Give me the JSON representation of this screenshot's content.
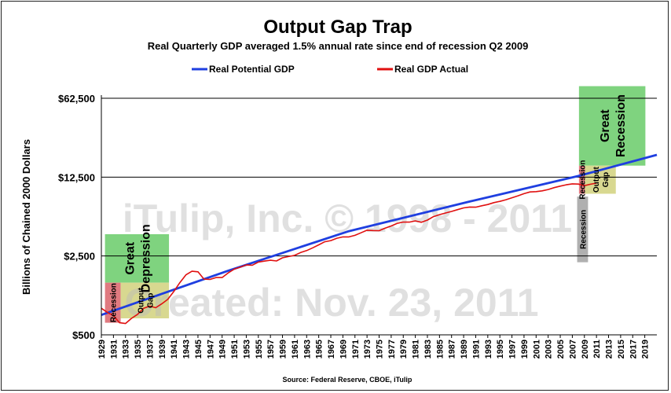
{
  "chart_data": {
    "type": "line",
    "title": "Output Gap Trap",
    "subtitle": "Real Quarterly GDP averaged 1.5% annual rate since end of recession Q2 2009",
    "ylabel": "Billions of Chained 2000 Dollars",
    "source": "Source: Federal Reserve, CBOE, iTulip",
    "y_scale": "log",
    "ylim": [
      500,
      62500
    ],
    "y_ticks": [
      500,
      2500,
      12500,
      62500
    ],
    "y_tick_labels": [
      "$500",
      "$2,500",
      "$12,500",
      "$62,500"
    ],
    "xlim": [
      1929,
      2021
    ],
    "x_ticks": [
      1929,
      1931,
      1933,
      1935,
      1937,
      1939,
      1941,
      1943,
      1945,
      1947,
      1949,
      1951,
      1953,
      1955,
      1957,
      1959,
      1961,
      1963,
      1965,
      1967,
      1969,
      1971,
      1973,
      1975,
      1977,
      1979,
      1981,
      1983,
      1985,
      1987,
      1989,
      1991,
      1993,
      1995,
      1997,
      1999,
      2001,
      2003,
      2005,
      2007,
      2009,
      2011,
      2013,
      2015,
      2017,
      2019
    ],
    "grid": true,
    "legend_placement": "top",
    "series": [
      {
        "name": "Real Potential GDP",
        "color": "#1f3fe0",
        "x": [
          1929,
          1950,
          1970,
          1990,
          2008,
          2021
        ],
        "values": [
          750,
          1850,
          4150,
          7600,
          12800,
          19700
        ]
      },
      {
        "name": "Real GDP Actual",
        "color": "#e01010",
        "x": [
          1929,
          1930,
          1931,
          1932,
          1933,
          1934,
          1935,
          1936,
          1937,
          1938,
          1939,
          1940,
          1941,
          1942,
          1943,
          1944,
          1945,
          1946,
          1947,
          1948,
          1949,
          1950,
          1951,
          1952,
          1953,
          1954,
          1955,
          1956,
          1957,
          1958,
          1959,
          1960,
          1961,
          1962,
          1963,
          1964,
          1965,
          1966,
          1967,
          1968,
          1969,
          1970,
          1971,
          1972,
          1973,
          1974,
          1975,
          1976,
          1977,
          1978,
          1979,
          1980,
          1981,
          1982,
          1983,
          1984,
          1985,
          1986,
          1987,
          1988,
          1989,
          1990,
          1991,
          1992,
          1993,
          1994,
          1995,
          1996,
          1997,
          1998,
          1999,
          2000,
          2001,
          2002,
          2003,
          2004,
          2005,
          2006,
          2007,
          2008,
          2009,
          2010,
          2011
        ],
        "values": [
          860,
          790,
          740,
          640,
          630,
          700,
          760,
          860,
          900,
          870,
          940,
          1030,
          1210,
          1450,
          1700,
          1830,
          1810,
          1560,
          1550,
          1610,
          1610,
          1770,
          1910,
          1990,
          2080,
          2070,
          2210,
          2250,
          2290,
          2260,
          2410,
          2470,
          2530,
          2680,
          2790,
          2950,
          3140,
          3340,
          3420,
          3590,
          3690,
          3690,
          3810,
          4010,
          4230,
          4200,
          4190,
          4410,
          4610,
          4870,
          5000,
          4990,
          5120,
          4970,
          5200,
          5580,
          5810,
          6010,
          6200,
          6440,
          6670,
          6790,
          6770,
          6960,
          7140,
          7430,
          7620,
          7880,
          8200,
          8540,
          8910,
          9240,
          9300,
          9450,
          9700,
          10080,
          10400,
          10680,
          10890,
          10850,
          10500,
          10800,
          11050
        ],
        "line_width": 1.8
      }
    ],
    "annotations": [
      {
        "name": "great-depression-box",
        "label": "Great Depression",
        "color": "#7fd37f",
        "x": [
          1929.6,
          1940.2
        ],
        "y": [
          1450,
          3900
        ]
      },
      {
        "name": "recession-1929-box",
        "label": "Recession",
        "color": "#e07a80",
        "x": [
          1929.6,
          1932.2
        ],
        "y": [
          640,
          1450
        ]
      },
      {
        "name": "output-gap-1930s-box",
        "label": "Output Gap",
        "color": "#d8d890",
        "x": [
          1932.2,
          1940.2
        ],
        "y": [
          700,
          1450
        ]
      },
      {
        "name": "great-recession-box",
        "label": "Great Recession",
        "color": "#7fd37f",
        "x": [
          2008.1,
          2019.1
        ],
        "y": [
          15800,
          80000
        ]
      },
      {
        "name": "recession-2008-box",
        "label": "Recession",
        "color": "#e07a80",
        "x": [
          2008.1,
          2009.1
        ],
        "y": [
          8900,
          15800
        ]
      },
      {
        "name": "output-gap-2008-box",
        "label": "Output Gap",
        "color": "#d8d890",
        "x": [
          2009.1,
          2014.2
        ],
        "y": [
          8900,
          15800
        ]
      },
      {
        "name": "recession-label-tab",
        "label": "Recession",
        "color": "#b0b0b0",
        "x": [
          2007.8,
          2009.6
        ],
        "y": [
          2200,
          8400
        ]
      }
    ]
  },
  "watermark": {
    "line1": "iTulip, Inc. © 1998 - 2011",
    "line2": "Created: Nov. 23, 2011"
  }
}
